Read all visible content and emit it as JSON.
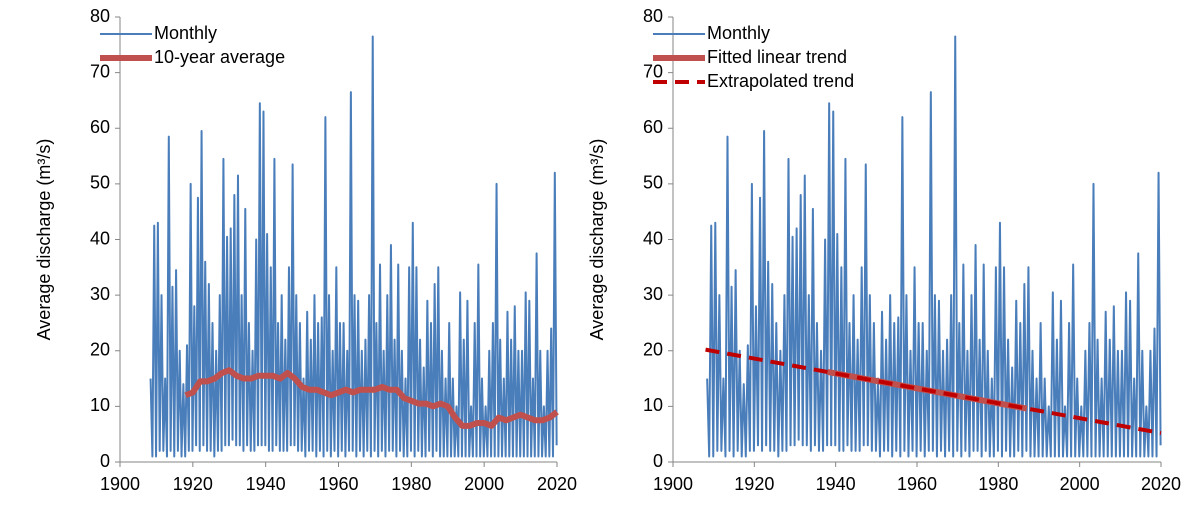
{
  "chart_data": [
    {
      "type": "line",
      "ylabel": "Average discharge (m³/s)",
      "legend": "upper left",
      "xlim": [
        1900,
        2020
      ],
      "xticks": [
        1900,
        1920,
        1940,
        1960,
        1980,
        2000,
        2020
      ],
      "ylim": [
        0,
        80
      ],
      "yticks": [
        0,
        10,
        20,
        30,
        40,
        50,
        60,
        70,
        80
      ],
      "series": [
        {
          "name": "Monthly",
          "color": "#4a7ebb",
          "style": "thin",
          "x": [
            1908.4,
            1908.9,
            1909.4,
            1909.9,
            1910.4,
            1910.9,
            1911.4,
            1911.9,
            1912.4,
            1912.9,
            1913.4,
            1913.9,
            1914.4,
            1914.9,
            1915.4,
            1915.9,
            1916.4,
            1916.9,
            1917.4,
            1917.9,
            1918.4,
            1918.9,
            1919.4,
            1919.9,
            1920.4,
            1920.9,
            1921.4,
            1921.9,
            1922.4,
            1922.9,
            1923.4,
            1923.9,
            1924.4,
            1924.9,
            1925.4,
            1925.9,
            1926.4,
            1926.9,
            1927.4,
            1927.9,
            1928.4,
            1928.9,
            1929.4,
            1929.9,
            1930.4,
            1930.9,
            1931.4,
            1931.9,
            1932.4,
            1932.9,
            1933.4,
            1933.9,
            1934.4,
            1934.9,
            1935.4,
            1935.9,
            1936.4,
            1936.9,
            1937.4,
            1937.9,
            1938.4,
            1938.9,
            1939.4,
            1939.9,
            1940.4,
            1940.9,
            1941.4,
            1941.9,
            1942.4,
            1942.9,
            1943.4,
            1943.9,
            1944.4,
            1944.9,
            1945.4,
            1945.9,
            1946.4,
            1946.9,
            1947.4,
            1947.9,
            1948.4,
            1948.9,
            1949.4,
            1949.9,
            1950.4,
            1950.9,
            1951.4,
            1951.9,
            1952.4,
            1952.9,
            1953.4,
            1953.9,
            1954.4,
            1954.9,
            1955.4,
            1955.9,
            1956.4,
            1956.9,
            1957.4,
            1957.9,
            1958.4,
            1958.9,
            1959.4,
            1959.9,
            1960.4,
            1960.9,
            1961.4,
            1961.9,
            1962.4,
            1962.9,
            1963.4,
            1963.9,
            1964.4,
            1964.9,
            1965.4,
            1965.9,
            1966.4,
            1966.9,
            1967.4,
            1967.9,
            1968.4,
            1968.9,
            1969.4,
            1969.9,
            1970.4,
            1970.9,
            1971.4,
            1971.9,
            1972.4,
            1972.9,
            1973.4,
            1973.9,
            1974.4,
            1974.9,
            1975.4,
            1975.9,
            1976.4,
            1976.9,
            1977.4,
            1977.9,
            1978.4,
            1978.9,
            1979.4,
            1979.9,
            1980.4,
            1980.9,
            1981.4,
            1981.9,
            1982.4,
            1982.9,
            1983.4,
            1983.9,
            1984.4,
            1984.9,
            1985.4,
            1985.9,
            1986.4,
            1986.9,
            1987.4,
            1987.9,
            1988.4,
            1988.9,
            1989.4,
            1989.9,
            1990.4,
            1990.9,
            1991.4,
            1991.9,
            1992.4,
            1992.9,
            1993.4,
            1993.9,
            1994.4,
            1994.9,
            1995.4,
            1995.9,
            1996.4,
            1996.9,
            1997.4,
            1997.9,
            1998.4,
            1998.9,
            1999.4,
            1999.9,
            2000.4,
            2000.9,
            2001.4,
            2001.9,
            2002.4,
            2002.9,
            2003.4,
            2003.9,
            2004.4,
            2004.9,
            2005.4,
            2005.9,
            2006.4,
            2006.9,
            2007.4,
            2007.9,
            2008.4,
            2008.9,
            2009.4,
            2009.9,
            2010.4,
            2010.9,
            2011.4,
            2011.9,
            2012.4,
            2012.9,
            2013.4,
            2013.9,
            2014.4,
            2014.9,
            2015.4,
            2015.9,
            2016.4,
            2016.9,
            2017.4,
            2017.9,
            2018.4,
            2018.9,
            2019.4,
            2019.9
          ],
          "values": [
            15,
            1,
            42.5,
            1,
            43,
            2,
            30,
            2,
            15,
            1,
            58.5,
            2,
            31.5,
            1,
            34.5,
            2,
            20,
            1,
            14,
            1,
            21,
            2,
            50,
            2,
            28,
            3,
            47.5,
            2,
            59.5,
            3,
            36,
            2,
            32,
            2,
            25,
            1,
            20,
            2,
            30,
            2,
            54.5,
            3,
            40.5,
            3,
            42,
            4,
            48,
            3,
            51.5,
            3,
            30,
            2,
            45.5,
            3,
            25,
            2,
            20,
            2,
            40,
            3,
            64.5,
            3,
            63,
            3,
            41,
            2,
            35,
            2,
            54.5,
            3,
            25,
            2,
            30,
            2,
            22,
            2,
            35,
            3,
            53.5,
            3,
            30,
            2,
            25,
            2,
            15,
            1,
            27,
            2,
            22,
            2,
            30,
            1,
            25,
            2,
            26,
            1,
            62,
            2,
            30,
            1,
            20,
            2,
            35,
            1,
            25,
            2,
            25,
            1,
            20,
            2,
            66.5,
            2,
            30,
            1,
            29,
            2,
            20,
            1,
            22,
            2,
            30,
            1,
            76.5,
            2,
            25,
            1,
            35.5,
            2,
            20,
            1,
            30,
            2,
            39,
            2,
            22,
            1,
            35.5,
            2,
            20,
            1,
            15,
            1,
            35,
            2,
            43,
            1,
            35,
            2,
            22,
            1,
            17,
            1,
            29,
            2,
            25,
            1,
            32,
            2,
            35,
            1,
            20,
            1,
            15,
            1,
            25,
            1,
            15,
            1,
            10,
            1,
            30.5,
            1,
            22,
            1,
            29,
            1,
            10,
            1,
            25,
            1,
            35.5,
            1,
            15,
            1,
            10,
            1,
            20,
            1,
            25,
            1,
            50,
            1,
            22,
            1,
            15,
            1,
            27,
            1,
            22,
            1,
            28,
            1,
            20,
            1,
            20,
            1,
            30.5,
            1,
            29,
            1,
            15,
            1,
            37.5,
            1,
            20,
            1,
            10,
            1,
            20,
            1,
            24,
            1,
            52,
            3
          ]
        },
        {
          "name": "10-year average",
          "color": "#c0504d",
          "style": "thick",
          "x": [
            1918,
            1920,
            1922,
            1924,
            1926,
            1928,
            1930,
            1932,
            1934,
            1936,
            1938,
            1940,
            1942,
            1944,
            1946,
            1948,
            1950,
            1952,
            1954,
            1956,
            1958,
            1960,
            1962,
            1964,
            1966,
            1968,
            1970,
            1972,
            1974,
            1976,
            1978,
            1980,
            1982,
            1984,
            1986,
            1988,
            1990,
            1992,
            1994,
            1996,
            1998,
            2000,
            2002,
            2004,
            2006,
            2008,
            2010,
            2012,
            2014,
            2016,
            2018,
            2020
          ],
          "values": [
            12,
            12.5,
            14.5,
            14.5,
            15,
            16,
            16.5,
            15.5,
            15,
            15,
            15.5,
            15.5,
            15.5,
            15,
            16,
            15,
            13.5,
            13,
            13,
            12.5,
            12,
            12.5,
            13,
            12.5,
            13,
            13,
            13,
            13.5,
            13,
            13,
            11.5,
            11,
            10.5,
            10.5,
            10,
            10.5,
            10,
            8,
            6.5,
            6.5,
            7,
            7,
            6.5,
            8,
            7.5,
            8,
            8.5,
            8,
            7.5,
            7.5,
            8,
            9
          ]
        }
      ]
    },
    {
      "type": "line",
      "ylabel": "Average discharge (m³/s)",
      "legend": "upper left",
      "xlim": [
        1900,
        2020
      ],
      "xticks": [
        1900,
        1920,
        1940,
        1960,
        1980,
        2000,
        2020
      ],
      "ylim": [
        0,
        80
      ],
      "yticks": [
        0,
        10,
        20,
        30,
        40,
        50,
        60,
        70,
        80
      ],
      "series": [
        {
          "name": "Monthly",
          "color": "#4a7ebb",
          "style": "thin",
          "x": [
            1908.4,
            1908.9,
            1909.4,
            1909.9,
            1910.4,
            1910.9,
            1911.4,
            1911.9,
            1912.4,
            1912.9,
            1913.4,
            1913.9,
            1914.4,
            1914.9,
            1915.4,
            1915.9,
            1916.4,
            1916.9,
            1917.4,
            1917.9,
            1918.4,
            1918.9,
            1919.4,
            1919.9,
            1920.4,
            1920.9,
            1921.4,
            1921.9,
            1922.4,
            1922.9,
            1923.4,
            1923.9,
            1924.4,
            1924.9,
            1925.4,
            1925.9,
            1926.4,
            1926.9,
            1927.4,
            1927.9,
            1928.4,
            1928.9,
            1929.4,
            1929.9,
            1930.4,
            1930.9,
            1931.4,
            1931.9,
            1932.4,
            1932.9,
            1933.4,
            1933.9,
            1934.4,
            1934.9,
            1935.4,
            1935.9,
            1936.4,
            1936.9,
            1937.4,
            1937.9,
            1938.4,
            1938.9,
            1939.4,
            1939.9,
            1940.4,
            1940.9,
            1941.4,
            1941.9,
            1942.4,
            1942.9,
            1943.4,
            1943.9,
            1944.4,
            1944.9,
            1945.4,
            1945.9,
            1946.4,
            1946.9,
            1947.4,
            1947.9,
            1948.4,
            1948.9,
            1949.4,
            1949.9,
            1950.4,
            1950.9,
            1951.4,
            1951.9,
            1952.4,
            1952.9,
            1953.4,
            1953.9,
            1954.4,
            1954.9,
            1955.4,
            1955.9,
            1956.4,
            1956.9,
            1957.4,
            1957.9,
            1958.4,
            1958.9,
            1959.4,
            1959.9,
            1960.4,
            1960.9,
            1961.4,
            1961.9,
            1962.4,
            1962.9,
            1963.4,
            1963.9,
            1964.4,
            1964.9,
            1965.4,
            1965.9,
            1966.4,
            1966.9,
            1967.4,
            1967.9,
            1968.4,
            1968.9,
            1969.4,
            1969.9,
            1970.4,
            1970.9,
            1971.4,
            1971.9,
            1972.4,
            1972.9,
            1973.4,
            1973.9,
            1974.4,
            1974.9,
            1975.4,
            1975.9,
            1976.4,
            1976.9,
            1977.4,
            1977.9,
            1978.4,
            1978.9,
            1979.4,
            1979.9,
            1980.4,
            1980.9,
            1981.4,
            1981.9,
            1982.4,
            1982.9,
            1983.4,
            1983.9,
            1984.4,
            1984.9,
            1985.4,
            1985.9,
            1986.4,
            1986.9,
            1987.4,
            1987.9,
            1988.4,
            1988.9,
            1989.4,
            1989.9,
            1990.4,
            1990.9,
            1991.4,
            1991.9,
            1992.4,
            1992.9,
            1993.4,
            1993.9,
            1994.4,
            1994.9,
            1995.4,
            1995.9,
            1996.4,
            1996.9,
            1997.4,
            1997.9,
            1998.4,
            1998.9,
            1999.4,
            1999.9,
            2000.4,
            2000.9,
            2001.4,
            2001.9,
            2002.4,
            2002.9,
            2003.4,
            2003.9,
            2004.4,
            2004.9,
            2005.4,
            2005.9,
            2006.4,
            2006.9,
            2007.4,
            2007.9,
            2008.4,
            2008.9,
            2009.4,
            2009.9,
            2010.4,
            2010.9,
            2011.4,
            2011.9,
            2012.4,
            2012.9,
            2013.4,
            2013.9,
            2014.4,
            2014.9,
            2015.4,
            2015.9,
            2016.4,
            2016.9,
            2017.4,
            2017.9,
            2018.4,
            2018.9,
            2019.4,
            2019.9
          ],
          "values": [
            15,
            1,
            42.5,
            1,
            43,
            2,
            30,
            2,
            15,
            1,
            58.5,
            2,
            31.5,
            1,
            34.5,
            2,
            20,
            1,
            14,
            1,
            21,
            2,
            50,
            2,
            28,
            3,
            47.5,
            2,
            59.5,
            3,
            36,
            2,
            32,
            2,
            25,
            1,
            20,
            2,
            30,
            2,
            54.5,
            3,
            40.5,
            3,
            42,
            4,
            48,
            3,
            51.5,
            3,
            30,
            2,
            45.5,
            3,
            25,
            2,
            20,
            2,
            40,
            3,
            64.5,
            3,
            63,
            3,
            41,
            2,
            35,
            2,
            54.5,
            3,
            25,
            2,
            30,
            2,
            22,
            2,
            35,
            3,
            53.5,
            3,
            30,
            2,
            25,
            2,
            15,
            1,
            27,
            2,
            22,
            2,
            30,
            1,
            25,
            2,
            26,
            1,
            62,
            2,
            30,
            1,
            20,
            2,
            35,
            1,
            25,
            2,
            25,
            1,
            20,
            2,
            66.5,
            2,
            30,
            1,
            29,
            2,
            20,
            1,
            22,
            2,
            30,
            1,
            76.5,
            2,
            25,
            1,
            35.5,
            2,
            20,
            1,
            30,
            2,
            39,
            2,
            22,
            1,
            35.5,
            2,
            20,
            1,
            15,
            1,
            35,
            2,
            43,
            1,
            35,
            2,
            22,
            1,
            17,
            1,
            29,
            2,
            25,
            1,
            32,
            2,
            35,
            1,
            20,
            1,
            15,
            1,
            25,
            1,
            15,
            1,
            10,
            1,
            30.5,
            1,
            22,
            1,
            29,
            1,
            10,
            1,
            25,
            1,
            35.5,
            1,
            15,
            1,
            10,
            1,
            20,
            1,
            25,
            1,
            50,
            1,
            22,
            1,
            15,
            1,
            27,
            1,
            22,
            1,
            28,
            1,
            20,
            1,
            20,
            1,
            30.5,
            1,
            29,
            1,
            15,
            1,
            37.5,
            1,
            20,
            1,
            10,
            1,
            20,
            1,
            24,
            1,
            52,
            3
          ]
        },
        {
          "name": "Fitted linear trend",
          "color": "#c0504d",
          "style": "thick",
          "x": [
            1938,
            1987
          ],
          "values": [
            16.2,
            9.6
          ]
        },
        {
          "name": "Extrapolated trend",
          "color": "#c00000",
          "style": "dashed",
          "x": [
            1908,
            2020
          ],
          "values": [
            20.2,
            5.2
          ]
        }
      ]
    }
  ]
}
